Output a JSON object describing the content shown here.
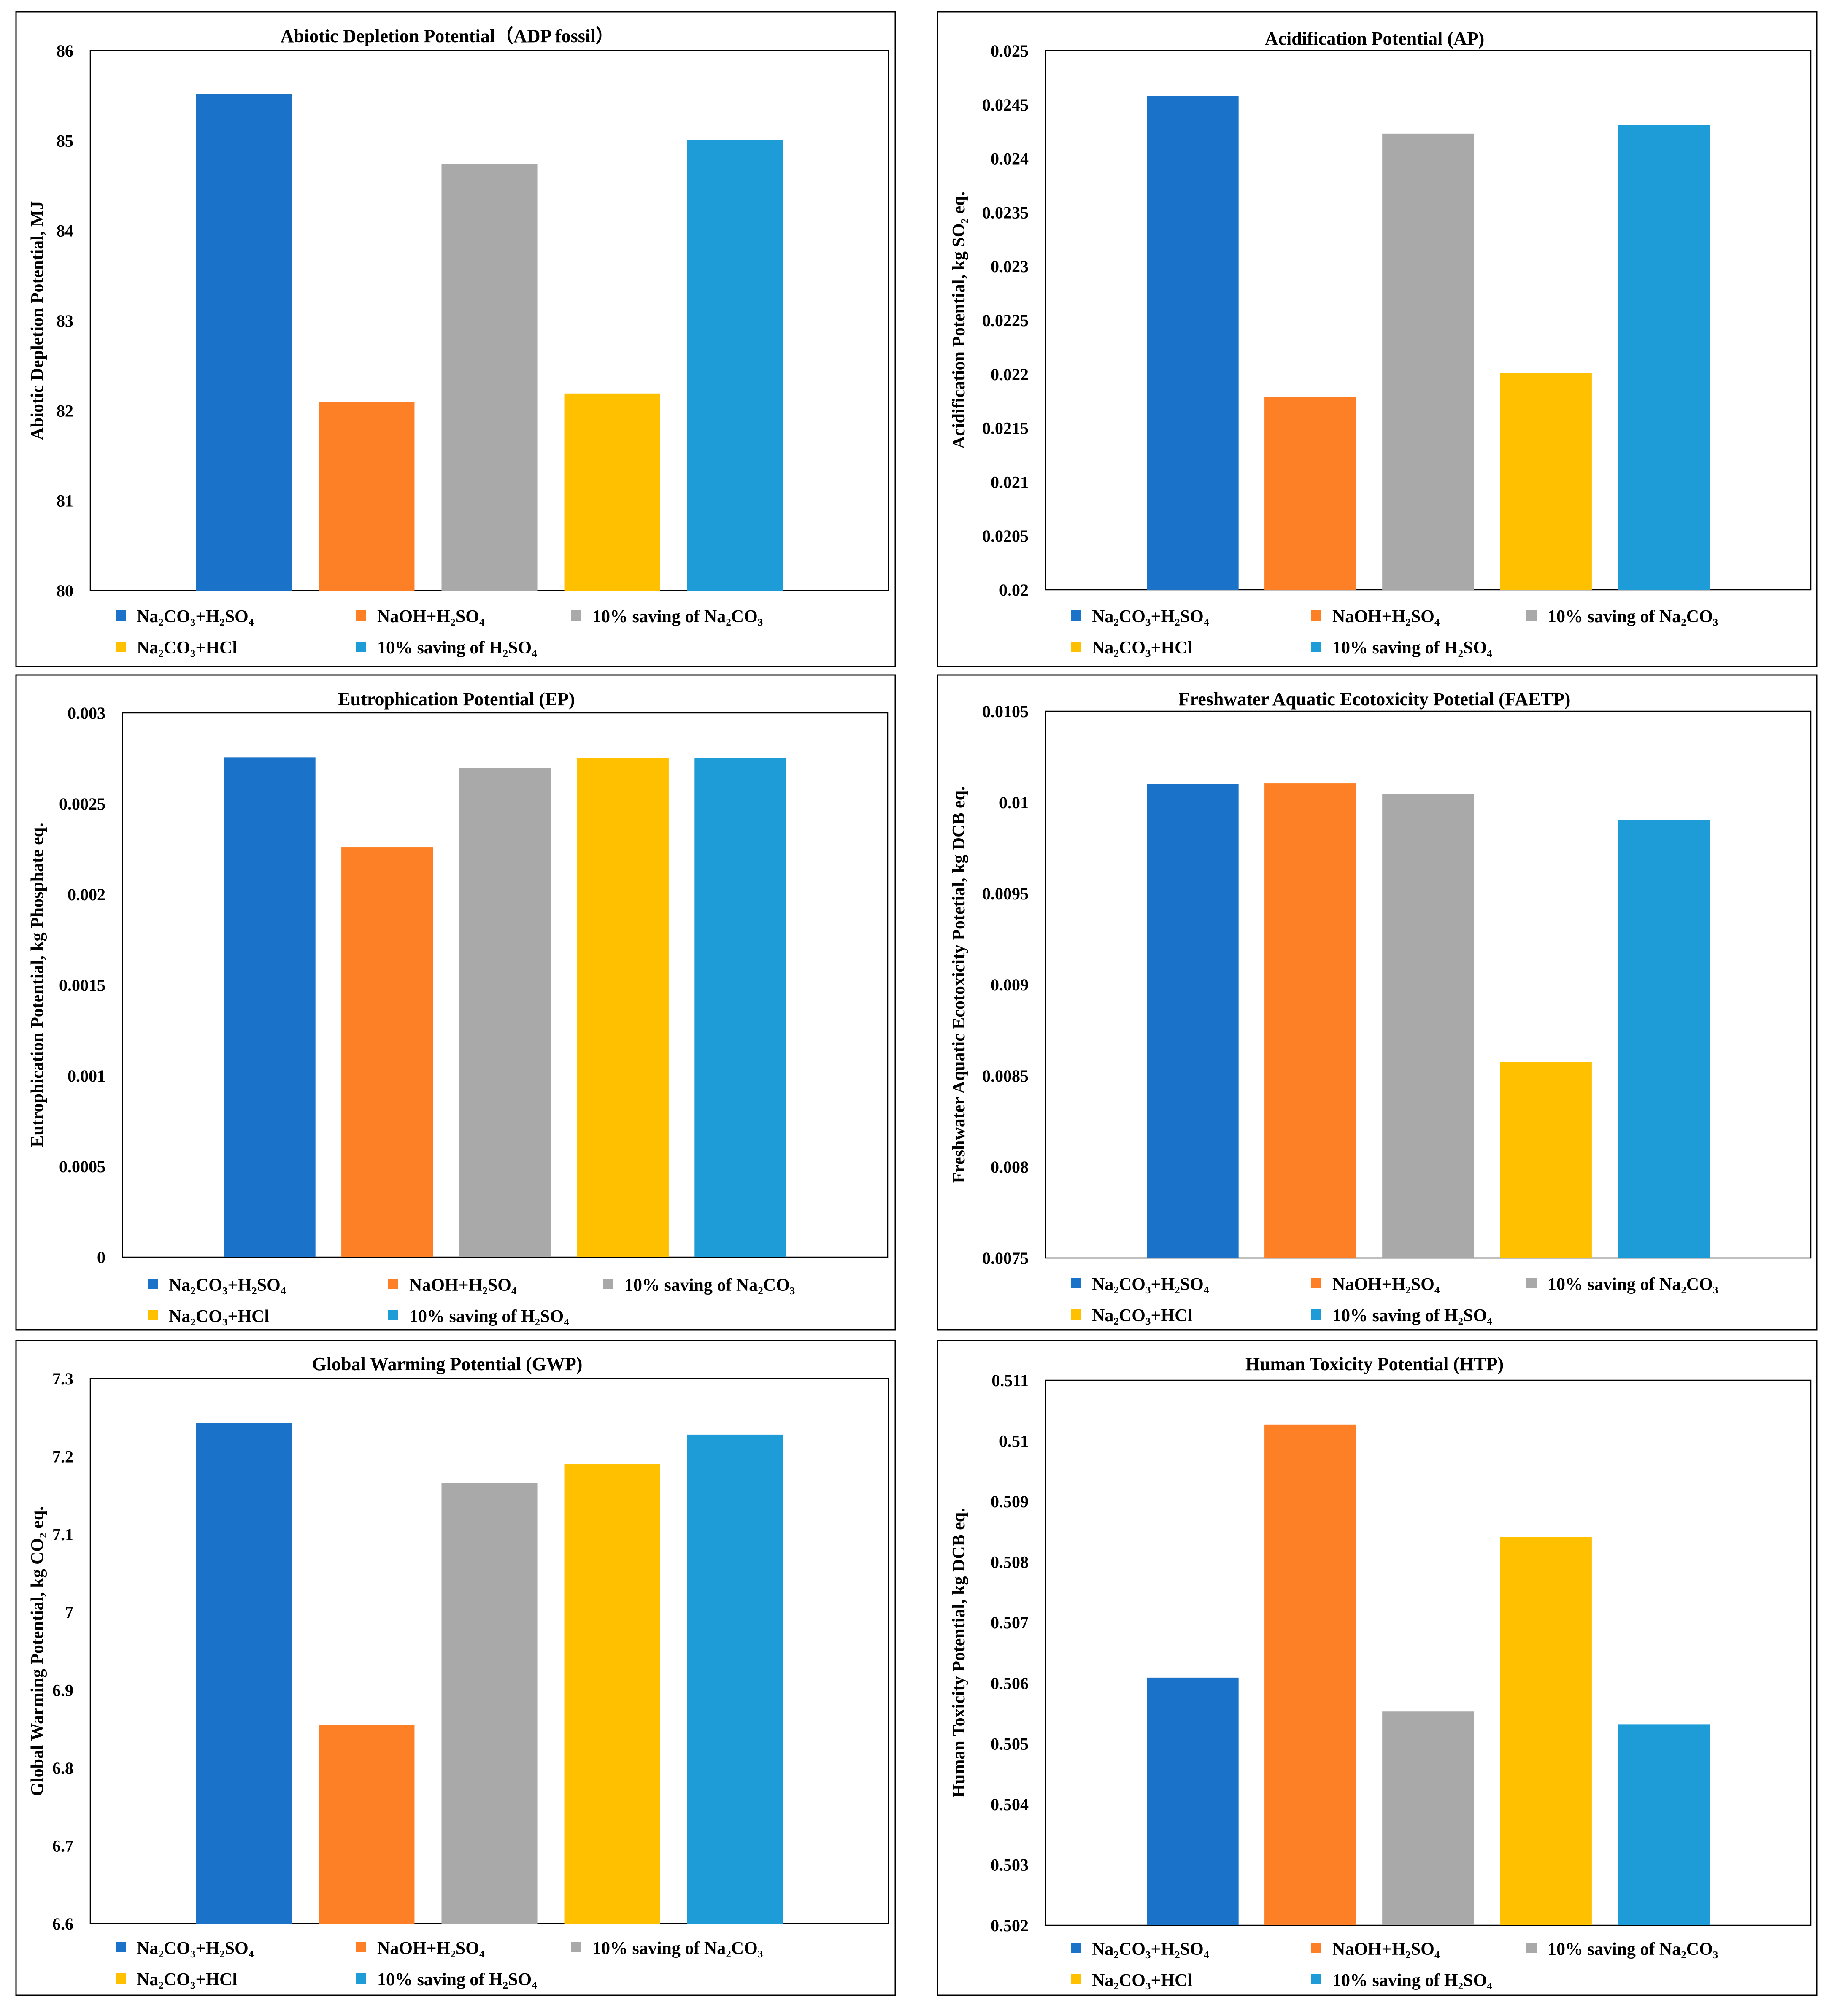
{
  "legend_labels": [
    "Na₂CO₃+H₂SO₄",
    "NaOH+H₂SO₄",
    "10% saving of Na₂CO₃",
    "Na₂CO₃+HCl",
    "10% saving of H₂SO₄"
  ],
  "chart_data": [
    {
      "type": "bar",
      "title": "Abiotic Depletion Potential（ADP fossil）",
      "ylabel": "Abiotic Depletion Potential, MJ",
      "xlabel": "",
      "ylim": [
        80,
        86
      ],
      "yticks": [
        80,
        81,
        82,
        83,
        84,
        85,
        86
      ],
      "ytick_labels": [
        "80",
        "81",
        "82",
        "83",
        "84",
        "85",
        "86"
      ],
      "categories": [
        "Na₂CO₃+H₂SO₄",
        "NaOH+H₂SO₄",
        "10% saving of Na₂CO₃",
        "Na₂CO₃+HCl",
        "10% saving of H₂SO₄"
      ],
      "values": [
        85.52,
        82.1,
        84.74,
        82.19,
        85.01
      ],
      "colors": [
        "#1a73c8",
        "#fd7f26",
        "#a9a9a9",
        "#ffc000",
        "#1d9cd8"
      ],
      "legend_position": "bottom"
    },
    {
      "type": "bar",
      "title": "Acidification Potential (AP)",
      "ylabel": "Acidification Potential, kg SO₂ eq.",
      "xlabel": "",
      "ylim": [
        0.02,
        0.025
      ],
      "yticks": [
        0.02,
        0.0205,
        0.021,
        0.0215,
        0.022,
        0.0225,
        0.023,
        0.0235,
        0.024,
        0.0245,
        0.025
      ],
      "ytick_labels": [
        "0.02",
        "0.0205",
        "0.021",
        "0.0215",
        "0.022",
        "0.0225",
        "0.023",
        "0.0235",
        "0.024",
        "0.0245",
        "0.025"
      ],
      "categories": [
        "Na₂CO₃+H₂SO₄",
        "NaOH+H₂SO₄",
        "10% saving of Na₂CO₃",
        "Na₂CO₃+HCl",
        "10% saving of H₂SO₄"
      ],
      "values": [
        0.02458,
        0.02179,
        0.02423,
        0.02201,
        0.02431
      ],
      "colors": [
        "#1a73c8",
        "#fd7f26",
        "#a9a9a9",
        "#ffc000",
        "#1d9cd8"
      ],
      "legend_position": "bottom"
    },
    {
      "type": "bar",
      "title": "Eutrophication Potential (EP)",
      "ylabel": "Eutrophication Potential, kg Phosphate eq.",
      "xlabel": "",
      "ylim": [
        0,
        0.003
      ],
      "yticks": [
        0,
        0.0005,
        0.001,
        0.0015,
        0.002,
        0.0025,
        0.003
      ],
      "ytick_labels": [
        "0",
        "0.0005",
        "0.001",
        "0.0015",
        "0.002",
        "0.0025",
        "0.003"
      ],
      "categories": [
        "Na₂CO₃+H₂SO₄",
        "NaOH+H₂SO₄",
        "10% saving of Na₂CO₃",
        "Na₂CO₃+HCl",
        "10% saving of H₂SO₄"
      ],
      "values": [
        0.002755,
        0.002258,
        0.002697,
        0.002749,
        0.002752
      ],
      "colors": [
        "#1a73c8",
        "#fd7f26",
        "#a9a9a9",
        "#ffc000",
        "#1d9cd8"
      ],
      "legend_position": "bottom"
    },
    {
      "type": "bar",
      "title": "Freshwater Aquatic Ecotoxicity Potetial (FAETP)",
      "ylabel": "Freshwater Aquatic Ecotoxicity Potetial, kg DCB eq.",
      "xlabel": "",
      "ylim": [
        0.0075,
        0.0105
      ],
      "yticks": [
        0.0075,
        0.008,
        0.0085,
        0.009,
        0.0095,
        0.01,
        0.0105
      ],
      "ytick_labels": [
        "0.0075",
        "0.008",
        "0.0085",
        "0.009",
        "0.0095",
        "0.01",
        "0.0105"
      ],
      "categories": [
        "Na₂CO₃+H₂SO₄",
        "NaOH+H₂SO₄",
        "10% saving of Na₂CO₃",
        "Na₂CO₃+HCl",
        "10% saving of H₂SO₄"
      ],
      "values": [
        0.0101,
        0.010104,
        0.010046,
        0.008575,
        0.009904
      ],
      "colors": [
        "#1a73c8",
        "#fd7f26",
        "#a9a9a9",
        "#ffc000",
        "#1d9cd8"
      ],
      "legend_position": "bottom"
    },
    {
      "type": "bar",
      "title": "Global Warming Potential (GWP)",
      "ylabel": "Global Warming Potential, kg CO₂ eq.",
      "xlabel": "",
      "ylim": [
        6.6,
        7.3
      ],
      "yticks": [
        6.6,
        6.7,
        6.8,
        6.9,
        7.0,
        7.1,
        7.2,
        7.3
      ],
      "ytick_labels": [
        "6.6",
        "6.7",
        "6.8",
        "6.9",
        "7",
        "7.1",
        "7.2",
        "7.3"
      ],
      "categories": [
        "Na₂CO₃+H₂SO₄",
        "NaOH+H₂SO₄",
        "10% saving of Na₂CO₃",
        "Na₂CO₃+HCl",
        "10% saving of H₂SO₄"
      ],
      "values": [
        7.243,
        6.855,
        7.166,
        7.19,
        7.228
      ],
      "colors": [
        "#1a73c8",
        "#fd7f26",
        "#a9a9a9",
        "#ffc000",
        "#1d9cd8"
      ],
      "legend_position": "bottom"
    },
    {
      "type": "bar",
      "title": "Human Toxicity Potential (HTP)",
      "ylabel": "Human Toxicity Potential, kg DCB eq.",
      "xlabel": "",
      "ylim": [
        0.502,
        0.511
      ],
      "yticks": [
        0.502,
        0.503,
        0.504,
        0.505,
        0.506,
        0.507,
        0.508,
        0.509,
        0.51,
        0.511
      ],
      "ytick_labels": [
        "0.502",
        "0.503",
        "0.504",
        "0.505",
        "0.506",
        "0.507",
        "0.508",
        "0.509",
        "0.51",
        "0.511"
      ],
      "categories": [
        "Na₂CO₃+H₂SO₄",
        "NaOH+H₂SO₄",
        "10% saving of Na₂CO₃",
        "Na₂CO₃+HCl",
        "10% saving of H₂SO₄"
      ],
      "values": [
        0.50609,
        0.51027,
        0.50553,
        0.50841,
        0.50532
      ],
      "colors": [
        "#1a73c8",
        "#fd7f26",
        "#a9a9a9",
        "#ffc000",
        "#1d9cd8"
      ],
      "legend_position": "bottom"
    }
  ]
}
